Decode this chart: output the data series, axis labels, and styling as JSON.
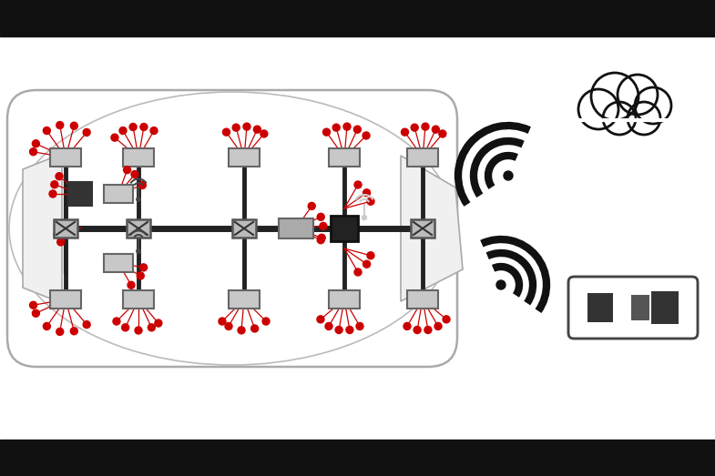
{
  "bg_color": "#ffffff",
  "car_outline_color": "#aaaaaa",
  "bus_line_color": "#222222",
  "sensor_color": "#cc0000",
  "signal_color": "#111111",
  "black_bar_color": "#111111",
  "figsize": [
    7.85,
    5.23
  ],
  "dpi": 100
}
